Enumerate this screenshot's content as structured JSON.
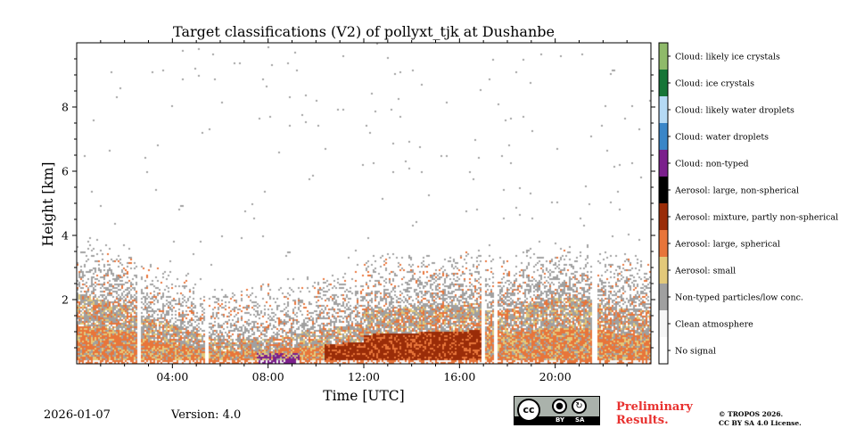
{
  "chart_data": {
    "type": "heatmap",
    "title": "Target classifications (V2) of pollyxt_tjk at Dushanbe",
    "xlabel": "Time [UTC]",
    "ylabel": "Height [km]",
    "xlim_hours": [
      0,
      24
    ],
    "ylim_km": [
      0,
      10
    ],
    "x_ticks": [
      {
        "value": 4,
        "label": "04:00"
      },
      {
        "value": 8,
        "label": "08:00"
      },
      {
        "value": 12,
        "label": "12:00"
      },
      {
        "value": 16,
        "label": "16:00"
      },
      {
        "value": 20,
        "label": "20:00"
      }
    ],
    "y_ticks": [
      {
        "value": 2,
        "label": "2"
      },
      {
        "value": 4,
        "label": "4"
      },
      {
        "value": 6,
        "label": "6"
      },
      {
        "value": 8,
        "label": "8"
      }
    ],
    "legend": [
      {
        "label": "No signal",
        "color": "#ffffff"
      },
      {
        "label": "Clean atmosphere",
        "color": "#f7f7f7"
      },
      {
        "label": "Non-typed particles/low conc.",
        "color": "#a0a0a0"
      },
      {
        "label": "Aerosol: small",
        "color": "#e3c97a"
      },
      {
        "label": "Aerosol: large, spherical",
        "color": "#e8753a"
      },
      {
        "label": "Aerosol: mixture, partly non-spherical",
        "color": "#9a2c08"
      },
      {
        "label": "Aerosol: large, non-spherical",
        "color": "#000000"
      },
      {
        "label": "Cloud: non-typed",
        "color": "#7b1f8c"
      },
      {
        "label": "Cloud: water droplets",
        "color": "#3a86c8"
      },
      {
        "label": "Cloud: likely water droplets",
        "color": "#b5daf5"
      },
      {
        "label": "Cloud: ice crystals",
        "color": "#167537"
      },
      {
        "label": "Cloud: likely ice crystals",
        "color": "#8fba6a"
      }
    ],
    "data_gaps_hours": [
      2.55,
      5.4,
      16.95,
      17.5,
      21.6
    ]
  },
  "footer": {
    "date": "2026-01-07",
    "version": "Version: 4.0",
    "preliminary_line1": "Preliminary",
    "preliminary_line2": "Results.",
    "copyright_line1": "© TROPOS 2026.",
    "copyright_line2": "CC BY SA 4.0 License.",
    "cc_text": "cc",
    "by_text": "BY",
    "sa_text": "SA"
  }
}
